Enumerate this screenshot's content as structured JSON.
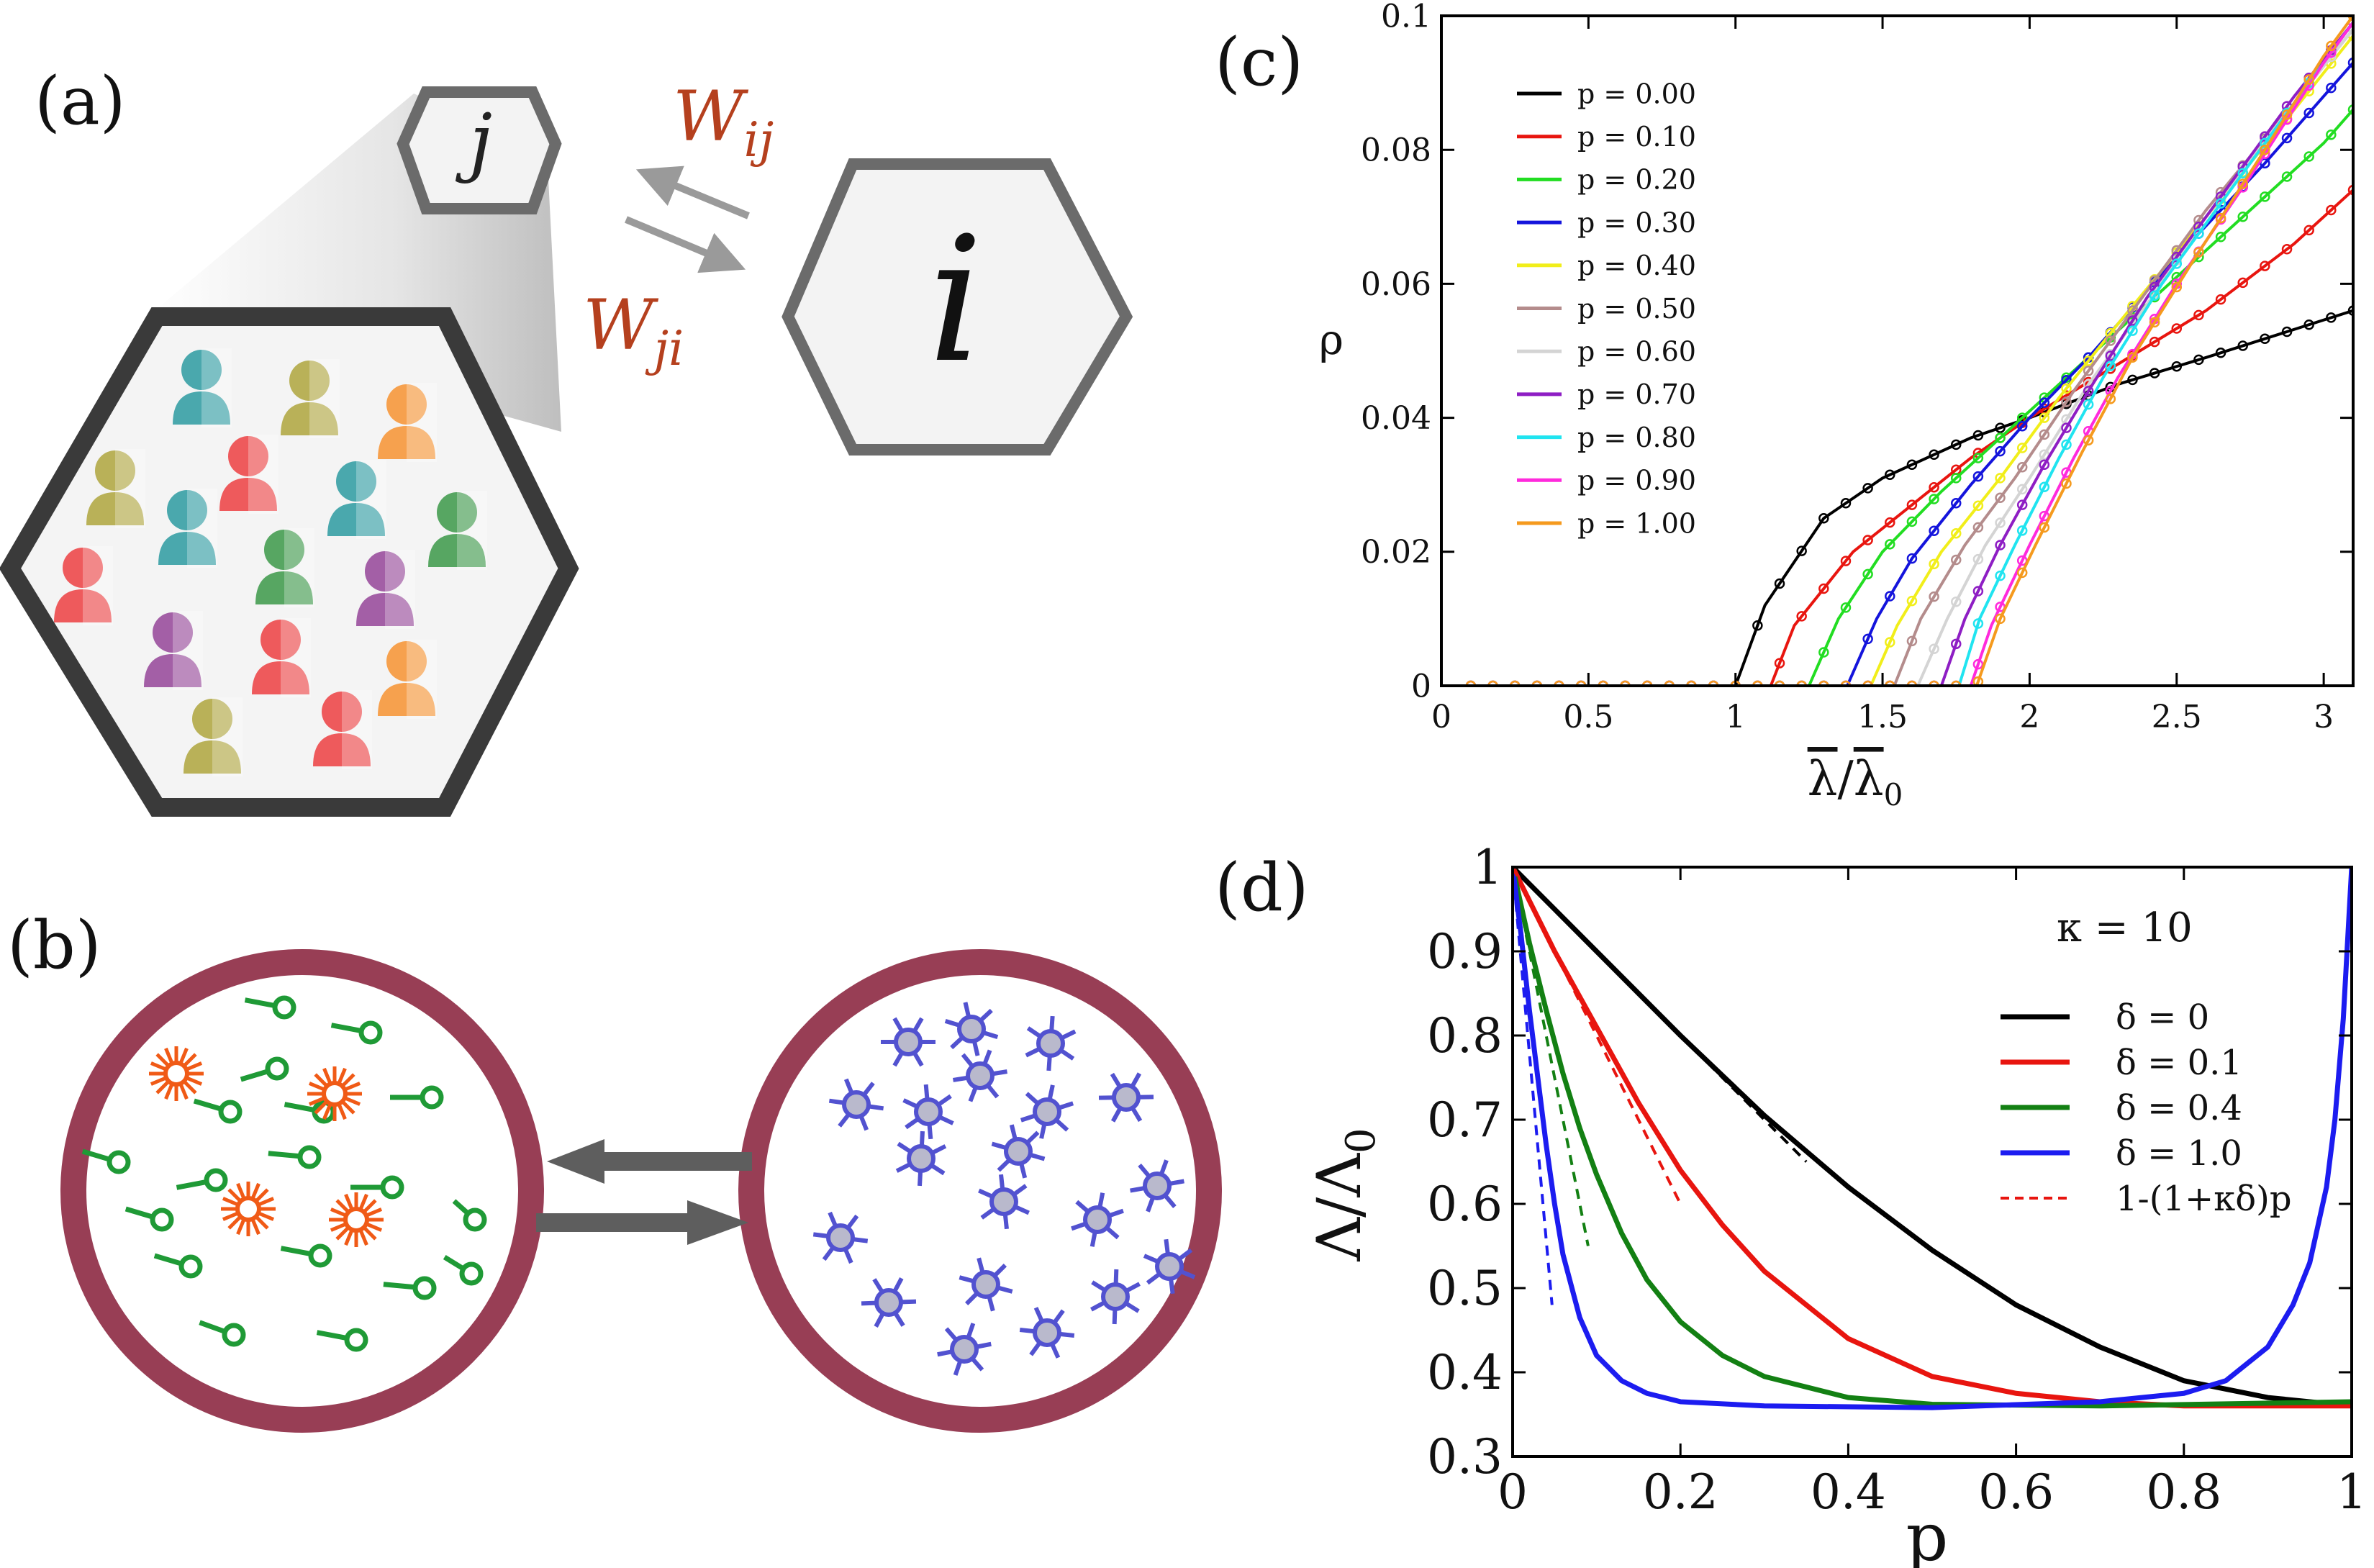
{
  "panel_a": {
    "label": "(a)",
    "node_j": "j",
    "node_i": "i",
    "arrow_top_label": "W_ij",
    "arrow_bottom_label": "W_ji",
    "label_color": "#b5401e",
    "person_colors": [
      "#4aa8ad",
      "#b9b158",
      "#f6a14e",
      "#ee5a5c",
      "#a35fa6",
      "#57a662"
    ]
  },
  "panel_b": {
    "label": "(b)",
    "ring_color": "#983e55",
    "left_particle_color": "#1f9a36",
    "left_star_color": "#f05a16",
    "right_particle_color": "#5252d0"
  },
  "chart_data": [
    {
      "panel": "(c)",
      "type": "line",
      "xlabel_bar": "λ",
      "xlabel_sep": "/",
      "xlabel_sub": "0",
      "ylabel": "ρ",
      "xlim": [
        0,
        3.1
      ],
      "ylim": [
        0,
        0.1
      ],
      "xticks": [
        0,
        0.5,
        1,
        1.5,
        2,
        2.5,
        3
      ],
      "xtick_labels": [
        "0",
        "0.5",
        "1",
        "1.5",
        "2",
        "2.5",
        "3"
      ],
      "yticks": [
        0,
        0.02,
        0.04,
        0.06,
        0.08,
        0.1
      ],
      "ytick_labels": [
        "0",
        "0.02",
        "0.04",
        "0.06",
        "0.08",
        "0.1"
      ],
      "legend_position": "top-left",
      "markers": "open circles",
      "series": [
        {
          "name": "p = 0.00",
          "color": "#000000",
          "x": [
            0.1,
            1.0,
            1.1,
            1.3,
            1.5,
            1.8,
            2.0,
            2.3,
            2.6,
            3.1
          ],
          "y": [
            0,
            0,
            0.012,
            0.025,
            0.031,
            0.037,
            0.04,
            0.045,
            0.049,
            0.056
          ]
        },
        {
          "name": "p = 0.10",
          "color": "#e8150f",
          "x": [
            0.1,
            1.12,
            1.2,
            1.4,
            1.6,
            1.8,
            2.0,
            2.3,
            2.6,
            2.9,
            3.1
          ],
          "y": [
            0,
            0,
            0.009,
            0.02,
            0.027,
            0.034,
            0.04,
            0.048,
            0.056,
            0.066,
            0.074
          ]
        },
        {
          "name": "p = 0.20",
          "color": "#22dd22",
          "x": [
            0.1,
            1.25,
            1.35,
            1.5,
            1.7,
            1.9,
            2.1,
            2.4,
            2.7,
            3.0,
            3.1
          ],
          "y": [
            0,
            0,
            0.01,
            0.02,
            0.029,
            0.037,
            0.045,
            0.057,
            0.069,
            0.081,
            0.086
          ]
        },
        {
          "name": "p = 0.30",
          "color": "#1414dc",
          "x": [
            0.1,
            1.38,
            1.48,
            1.6,
            1.8,
            2.0,
            2.2,
            2.5,
            2.8,
            3.1
          ],
          "y": [
            0,
            0,
            0.01,
            0.019,
            0.03,
            0.04,
            0.049,
            0.064,
            0.078,
            0.093
          ]
        },
        {
          "name": "p = 0.40",
          "color": "#f1ee1a",
          "x": [
            0.1,
            1.46,
            1.55,
            1.7,
            1.9,
            2.1,
            2.3,
            2.6,
            2.9,
            3.1
          ],
          "y": [
            0,
            0,
            0.009,
            0.02,
            0.031,
            0.043,
            0.054,
            0.07,
            0.086,
            0.097
          ]
        },
        {
          "name": "p = 0.50",
          "color": "#b48c8c",
          "x": [
            0.1,
            1.54,
            1.63,
            1.78,
            1.95,
            2.15,
            2.35,
            2.6,
            2.9,
            3.1
          ],
          "y": [
            0,
            0,
            0.01,
            0.021,
            0.031,
            0.044,
            0.056,
            0.071,
            0.087,
            0.098
          ]
        },
        {
          "name": "p = 0.60",
          "color": "#d4d4d4",
          "x": [
            0.1,
            1.62,
            1.72,
            1.85,
            2.0,
            2.2,
            2.4,
            2.6,
            2.9,
            3.1
          ],
          "y": [
            0,
            0,
            0.01,
            0.021,
            0.031,
            0.045,
            0.057,
            0.07,
            0.087,
            0.098
          ]
        },
        {
          "name": "p = 0.70",
          "color": "#8e1ec4",
          "x": [
            0.1,
            1.7,
            1.78,
            1.9,
            2.05,
            2.2,
            2.4,
            2.6,
            2.9,
            3.1
          ],
          "y": [
            0,
            0,
            0.01,
            0.021,
            0.033,
            0.044,
            0.058,
            0.07,
            0.088,
            0.099
          ]
        },
        {
          "name": "p = 0.80",
          "color": "#20e4f0",
          "x": [
            0.1,
            1.76,
            1.83,
            1.95,
            2.1,
            2.25,
            2.45,
            2.7,
            2.95,
            3.1
          ],
          "y": [
            0,
            0,
            0.01,
            0.021,
            0.034,
            0.046,
            0.06,
            0.075,
            0.09,
            0.099
          ]
        },
        {
          "name": "p = 0.90",
          "color": "#ff2adc",
          "x": [
            0.1,
            1.8,
            1.87,
            2.0,
            2.15,
            2.3,
            2.5,
            2.75,
            3.0,
            3.1
          ],
          "y": [
            0,
            0,
            0.009,
            0.021,
            0.034,
            0.046,
            0.06,
            0.076,
            0.093,
            0.099
          ]
        },
        {
          "name": "p = 1.00",
          "color": "#f59a1e",
          "x": [
            0.1,
            1.82,
            1.9,
            2.02,
            2.18,
            2.35,
            2.55,
            2.8,
            3.0,
            3.1
          ],
          "y": [
            0,
            0,
            0.01,
            0.021,
            0.035,
            0.049,
            0.063,
            0.08,
            0.094,
            0.1
          ]
        }
      ]
    },
    {
      "panel": "(d)",
      "type": "line",
      "xlabel": "p",
      "ylabel_main": "Λ/Λ",
      "ylabel_sub": "0",
      "xlim": [
        0,
        1
      ],
      "ylim": [
        0.3,
        1
      ],
      "xticks": [
        0,
        0.2,
        0.4,
        0.6,
        0.8,
        1
      ],
      "xtick_labels": [
        "0",
        "0.2",
        "0.4",
        "0.6",
        "0.8",
        "1"
      ],
      "yticks": [
        0.3,
        0.4,
        0.5,
        0.6,
        0.7,
        0.8,
        0.9,
        1
      ],
      "ytick_labels": [
        "0.3",
        "0.4",
        "0.5",
        "0.6",
        "0.7",
        "0.8",
        "0.9",
        "1"
      ],
      "annotation": "κ = 10",
      "legend_position": "right",
      "series": [
        {
          "name": "δ = 0",
          "color": "#000000",
          "x": [
            0,
            0.1,
            0.2,
            0.3,
            0.4,
            0.5,
            0.6,
            0.7,
            0.8,
            0.9,
            1.0
          ],
          "y": [
            1.0,
            0.9,
            0.8,
            0.705,
            0.62,
            0.545,
            0.48,
            0.43,
            0.39,
            0.37,
            0.36
          ]
        },
        {
          "name": "δ = 0.1",
          "color": "#e8150f",
          "x": [
            0,
            0.05,
            0.1,
            0.15,
            0.2,
            0.25,
            0.3,
            0.4,
            0.5,
            0.6,
            0.7,
            0.8,
            1.0
          ],
          "y": [
            1.0,
            0.9,
            0.81,
            0.72,
            0.64,
            0.575,
            0.52,
            0.44,
            0.395,
            0.375,
            0.365,
            0.36,
            0.36
          ]
        },
        {
          "name": "δ = 0.4",
          "color": "#138013",
          "x": [
            0,
            0.02,
            0.04,
            0.06,
            0.08,
            0.1,
            0.13,
            0.16,
            0.2,
            0.25,
            0.3,
            0.4,
            0.5,
            0.7,
            1.0
          ],
          "y": [
            1.0,
            0.91,
            0.83,
            0.755,
            0.69,
            0.635,
            0.565,
            0.51,
            0.46,
            0.42,
            0.395,
            0.37,
            0.362,
            0.36,
            0.365
          ]
        },
        {
          "name": "δ = 1.0",
          "color": "#1c1cf0",
          "x": [
            0,
            0.01,
            0.02,
            0.03,
            0.04,
            0.05,
            0.06,
            0.08,
            0.1,
            0.13,
            0.16,
            0.2,
            0.3,
            0.5,
            0.7,
            0.8,
            0.85,
            0.9,
            0.93,
            0.95,
            0.97,
            0.98,
            0.99,
            1.0
          ],
          "y": [
            1.0,
            0.92,
            0.83,
            0.75,
            0.67,
            0.6,
            0.54,
            0.465,
            0.42,
            0.39,
            0.375,
            0.365,
            0.36,
            0.358,
            0.365,
            0.375,
            0.39,
            0.43,
            0.48,
            0.53,
            0.62,
            0.7,
            0.82,
            1.0
          ]
        },
        {
          "name": "1-(1+κδ)p",
          "color": "#e8150f",
          "style": "dashed",
          "x": [
            0,
            0.2
          ],
          "y": [
            1.0,
            0.6
          ]
        }
      ],
      "extra_dashed": [
        {
          "color": "#000000",
          "x": [
            0,
            0.35
          ],
          "y": [
            1.0,
            0.65
          ]
        },
        {
          "color": "#138013",
          "x": [
            0,
            0.09
          ],
          "y": [
            1.0,
            0.55
          ]
        },
        {
          "color": "#1c1cf0",
          "x": [
            0,
            0.047
          ],
          "y": [
            1.0,
            0.48
          ]
        }
      ]
    }
  ]
}
